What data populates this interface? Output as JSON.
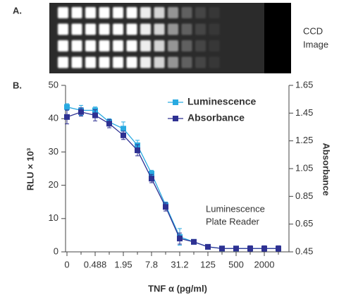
{
  "panel_a": {
    "label": "A.",
    "caption": [
      "CCD",
      "Image"
    ]
  },
  "chart_data": {
    "type": "line",
    "panel_label": "B.",
    "x_label": "TNF α (pg/ml)",
    "y_label": "RLU × 10³",
    "y2_label": "Absorbance",
    "annotation": [
      "Luminescence",
      "Plate Reader"
    ],
    "categories": [
      "0",
      null,
      "0.488",
      null,
      "1.95",
      null,
      "7.8",
      null,
      "31.2",
      null,
      "125",
      null,
      "500",
      null,
      "2000",
      null
    ],
    "ylim": [
      0,
      50
    ],
    "yticks": [
      0,
      10,
      20,
      30,
      40,
      50
    ],
    "y2lim": [
      0.45,
      1.65
    ],
    "y2ticks": [
      0.45,
      0.65,
      0.85,
      1.05,
      1.25,
      1.45,
      1.65
    ],
    "legend": "top-center",
    "series": [
      {
        "name": "Luminescence",
        "color": "#29aae1",
        "values": [
          43.5,
          42.5,
          42.5,
          39,
          37,
          32,
          23.5,
          14,
          4.5,
          3,
          1.5,
          1,
          1,
          1,
          1,
          1
        ],
        "errors": [
          1,
          1.5,
          1,
          1,
          2,
          1.5,
          1,
          1,
          2.5,
          0.5,
          0.5,
          0.5,
          0.5,
          0.5,
          0.5,
          0.5
        ]
      },
      {
        "name": "Absorbance",
        "color": "#2e3192",
        "axis": "y2",
        "values": [
          1.422,
          1.458,
          1.434,
          1.374,
          1.29,
          1.182,
          0.978,
          0.774,
          0.546,
          0.522,
          0.486,
          0.474,
          0.474,
          0.474,
          0.474,
          0.474
        ],
        "errors": [
          0.05,
          0.03,
          0.04,
          0.03,
          0.03,
          0.04,
          0.03,
          0.03,
          0.04,
          0.01,
          0.01,
          0.01,
          0.01,
          0.02,
          0.02,
          0.02
        ]
      }
    ]
  }
}
